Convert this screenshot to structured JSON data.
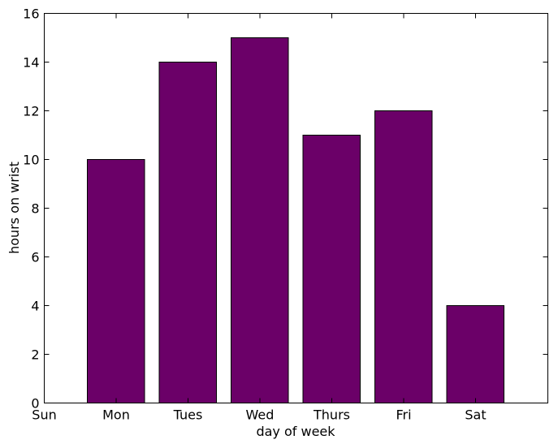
{
  "chart_data": {
    "type": "bar",
    "categories": [
      "Sun",
      "Mon",
      "Tues",
      "Wed",
      "Thurs",
      "Fri",
      "Sat"
    ],
    "values": [
      0,
      10,
      14,
      15,
      11,
      12,
      4
    ],
    "title": "",
    "xlabel": "day of week",
    "ylabel": "hours on wrist",
    "ylim": [
      0,
      16
    ],
    "yticks": [
      0,
      2,
      4,
      6,
      8,
      10,
      12,
      14,
      16
    ],
    "bar_color": "#6b0068",
    "grid": false,
    "legend": "none"
  }
}
